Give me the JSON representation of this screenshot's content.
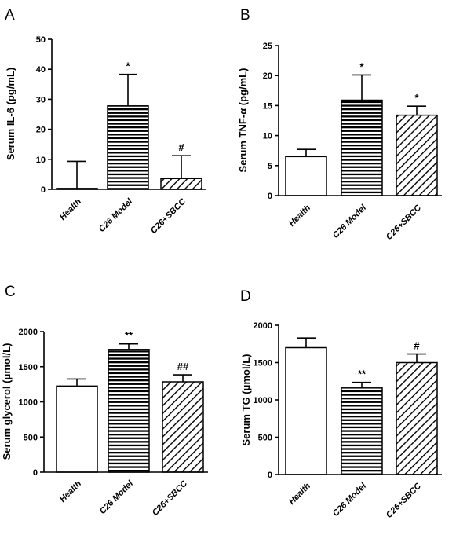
{
  "chart_data": [
    {
      "panel": "A",
      "type": "bar",
      "ylabel": "Serum IL-6 (pg/mL)",
      "ylim": [
        0,
        50
      ],
      "yticks": [
        0,
        10,
        20,
        30,
        40,
        50
      ],
      "categories": [
        "Health",
        "C26 Model",
        "C26+SBCC"
      ],
      "values": [
        0.3,
        27.8,
        3.6
      ],
      "errors": [
        9.0,
        10.5,
        7.6
      ],
      "annotations": [
        "",
        "*",
        "#"
      ],
      "patterns": [
        "none",
        "horizontal",
        "diagonal"
      ]
    },
    {
      "panel": "B",
      "type": "bar",
      "ylabel": "Serum TNF-α (pg/mL)",
      "ylim": [
        0,
        25
      ],
      "yticks": [
        0,
        5,
        10,
        15,
        20,
        25
      ],
      "categories": [
        "Health",
        "C26 Model",
        "C26+SBCC"
      ],
      "values": [
        6.5,
        15.9,
        13.4
      ],
      "errors": [
        1.2,
        4.2,
        1.5
      ],
      "annotations": [
        "",
        "*",
        "*"
      ],
      "patterns": [
        "none",
        "horizontal",
        "diagonal"
      ]
    },
    {
      "panel": "C",
      "type": "bar",
      "ylabel": "Serum glycerol (μmol/L)",
      "ylim": [
        0,
        2000
      ],
      "yticks": [
        0,
        500,
        1000,
        1500,
        2000
      ],
      "categories": [
        "Health",
        "C26 Model",
        "C26+SBCC"
      ],
      "values": [
        1225,
        1745,
        1285
      ],
      "errors": [
        100,
        80,
        100
      ],
      "annotations": [
        "",
        "**",
        "##"
      ],
      "patterns": [
        "none",
        "horizontal",
        "diagonal"
      ]
    },
    {
      "panel": "D",
      "type": "bar",
      "ylabel": "Serum TG (μmol/L)",
      "ylim": [
        0,
        2000
      ],
      "yticks": [
        0,
        500,
        1000,
        1500,
        2000
      ],
      "categories": [
        "Health",
        "C26 Model",
        "C26+SBCC"
      ],
      "values": [
        1700,
        1160,
        1500
      ],
      "errors": [
        130,
        75,
        115
      ],
      "annotations": [
        "",
        "**",
        "#"
      ],
      "patterns": [
        "none",
        "horizontal",
        "diagonal"
      ]
    }
  ]
}
